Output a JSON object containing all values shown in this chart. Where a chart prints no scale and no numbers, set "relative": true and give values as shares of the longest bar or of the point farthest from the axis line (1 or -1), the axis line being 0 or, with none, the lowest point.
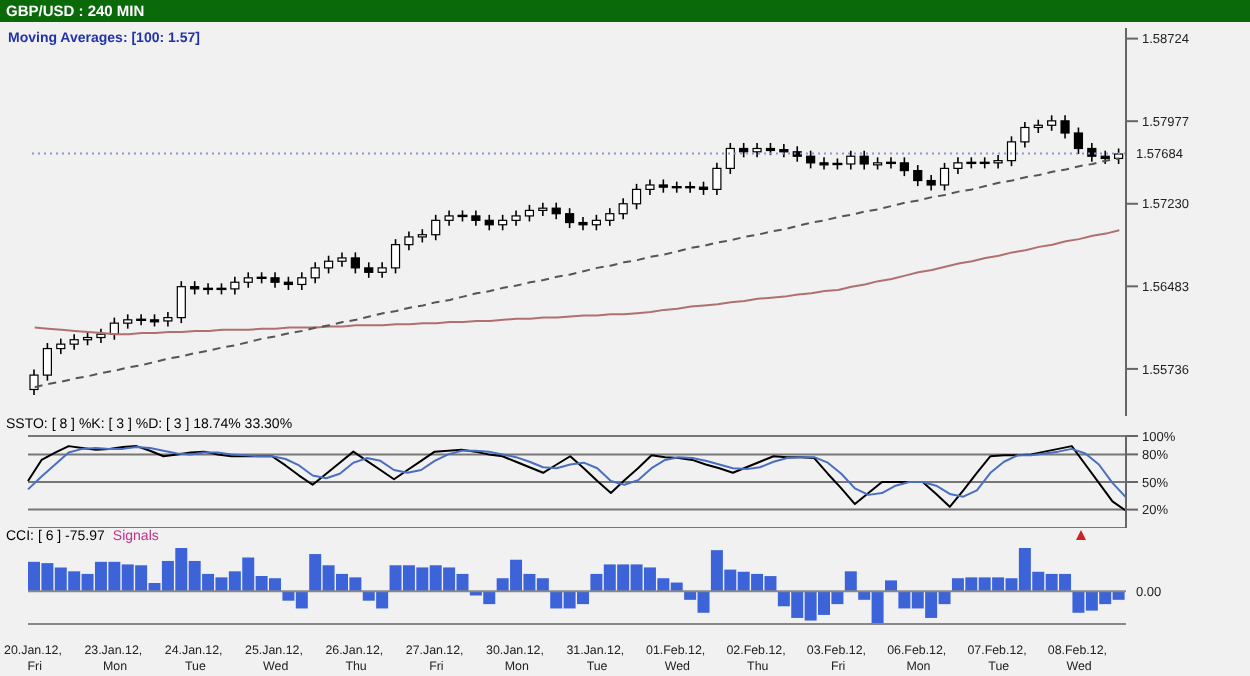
{
  "chart_data": [
    {
      "type": "candlestick",
      "title": "GBP/USD : 240 MIN",
      "annotations": [
        "Moving Averages: [100: 1.57]"
      ],
      "tick_labels": "y",
      "categories": [
        null,
        null,
        null,
        null,
        null,
        null,
        null,
        null,
        null,
        null,
        null,
        null,
        null,
        null,
        null,
        null,
        null,
        null,
        null,
        null,
        null,
        null,
        null,
        null,
        null,
        null,
        null,
        null,
        null,
        null,
        null,
        null,
        null,
        null,
        null,
        null,
        null,
        null,
        null,
        null,
        null,
        null,
        null,
        null,
        null,
        null,
        null,
        null,
        null,
        null,
        null,
        null,
        null,
        null,
        null,
        null,
        null,
        null,
        null,
        null,
        null,
        null,
        null,
        null,
        null,
        null,
        null,
        null,
        null,
        null,
        null,
        null,
        null,
        null,
        null,
        null,
        null,
        null,
        null,
        null,
        null,
        null
      ],
      "ohlc": [
        [
          1.5555,
          1.5573,
          1.555,
          1.5568
        ],
        [
          1.5568,
          1.5597,
          1.5563,
          1.5592
        ],
        [
          1.5592,
          1.5601,
          1.5587,
          1.5596
        ],
        [
          1.5596,
          1.5605,
          1.5591,
          1.56
        ],
        [
          1.56,
          1.5607,
          1.5595,
          1.5602
        ],
        [
          1.5602,
          1.561,
          1.5597,
          1.5605
        ],
        [
          1.5605,
          1.562,
          1.56,
          1.5615
        ],
        [
          1.5615,
          1.5623,
          1.561,
          1.5618
        ],
        [
          1.5618,
          1.5623,
          1.5613,
          1.5618
        ],
        [
          1.5618,
          1.5623,
          1.5612,
          1.5617
        ],
        [
          1.5617,
          1.5625,
          1.5612,
          1.562
        ],
        [
          1.562,
          1.5653,
          1.5615,
          1.5648
        ],
        [
          1.5648,
          1.5653,
          1.5641,
          1.5646
        ],
        [
          1.5646,
          1.5651,
          1.5641,
          1.5646
        ],
        [
          1.5646,
          1.5651,
          1.5641,
          1.5646
        ],
        [
          1.5646,
          1.5657,
          1.5641,
          1.5652
        ],
        [
          1.5652,
          1.5661,
          1.5647,
          1.5656
        ],
        [
          1.5656,
          1.5661,
          1.5651,
          1.5656
        ],
        [
          1.5656,
          1.5661,
          1.5647,
          1.5652
        ],
        [
          1.5652,
          1.5657,
          1.5645,
          1.565
        ],
        [
          1.565,
          1.5661,
          1.5645,
          1.5656
        ],
        [
          1.5656,
          1.567,
          1.5651,
          1.5665
        ],
        [
          1.5665,
          1.5676,
          1.566,
          1.5671
        ],
        [
          1.5671,
          1.5679,
          1.5666,
          1.5674
        ],
        [
          1.5674,
          1.5679,
          1.566,
          1.5665
        ],
        [
          1.5665,
          1.567,
          1.5656,
          1.5661
        ],
        [
          1.5661,
          1.567,
          1.5656,
          1.5665
        ],
        [
          1.5665,
          1.5691,
          1.566,
          1.5686
        ],
        [
          1.5686,
          1.5698,
          1.5681,
          1.5693
        ],
        [
          1.5693,
          1.57,
          1.5688,
          1.5695
        ],
        [
          1.5695,
          1.5713,
          1.569,
          1.5708
        ],
        [
          1.5708,
          1.5717,
          1.5703,
          1.5712
        ],
        [
          1.5712,
          1.5717,
          1.5707,
          1.5712
        ],
        [
          1.5712,
          1.5717,
          1.5703,
          1.5708
        ],
        [
          1.5708,
          1.5713,
          1.5699,
          1.5704
        ],
        [
          1.5704,
          1.5713,
          1.5699,
          1.5708
        ],
        [
          1.5708,
          1.5717,
          1.5703,
          1.5712
        ],
        [
          1.5712,
          1.5722,
          1.5707,
          1.5717
        ],
        [
          1.5717,
          1.5724,
          1.5712,
          1.5719
        ],
        [
          1.5719,
          1.5724,
          1.5709,
          1.5714
        ],
        [
          1.5714,
          1.5719,
          1.5701,
          1.5706
        ],
        [
          1.5706,
          1.5711,
          1.5699,
          1.5704
        ],
        [
          1.5704,
          1.5713,
          1.5699,
          1.5708
        ],
        [
          1.5708,
          1.5719,
          1.5703,
          1.5714
        ],
        [
          1.5714,
          1.5728,
          1.5709,
          1.5723
        ],
        [
          1.5723,
          1.5741,
          1.5718,
          1.5736
        ],
        [
          1.5736,
          1.5745,
          1.5731,
          1.574
        ],
        [
          1.574,
          1.5745,
          1.5733,
          1.5738
        ],
        [
          1.5738,
          1.5743,
          1.5733,
          1.5738
        ],
        [
          1.5738,
          1.5743,
          1.5733,
          1.5738
        ],
        [
          1.5738,
          1.5743,
          1.5731,
          1.5736
        ],
        [
          1.5736,
          1.576,
          1.5731,
          1.5755
        ],
        [
          1.5755,
          1.5778,
          1.575,
          1.5773
        ],
        [
          1.5773,
          1.5778,
          1.5765,
          1.577
        ],
        [
          1.577,
          1.5778,
          1.5765,
          1.5773
        ],
        [
          1.5773,
          1.5778,
          1.5767,
          1.5772
        ],
        [
          1.5772,
          1.5777,
          1.5765,
          1.577
        ],
        [
          1.577,
          1.5775,
          1.5761,
          1.5766
        ],
        [
          1.5766,
          1.5771,
          1.5755,
          1.576
        ],
        [
          1.576,
          1.5765,
          1.5754,
          1.5759
        ],
        [
          1.5759,
          1.5764,
          1.5754,
          1.5759
        ],
        [
          1.5759,
          1.5771,
          1.5754,
          1.5766
        ],
        [
          1.5766,
          1.5771,
          1.5754,
          1.5759
        ],
        [
          1.5759,
          1.5765,
          1.5754,
          1.576
        ],
        [
          1.576,
          1.5765,
          1.5755,
          1.576
        ],
        [
          1.576,
          1.5765,
          1.5748,
          1.5753
        ],
        [
          1.5753,
          1.5758,
          1.5739,
          1.5744
        ],
        [
          1.5744,
          1.5749,
          1.5735,
          1.574
        ],
        [
          1.574,
          1.576,
          1.5735,
          1.5755
        ],
        [
          1.5755,
          1.5765,
          1.575,
          1.576
        ],
        [
          1.576,
          1.5765,
          1.5755,
          1.576
        ],
        [
          1.576,
          1.5765,
          1.5755,
          1.576
        ],
        [
          1.576,
          1.5767,
          1.5755,
          1.5762
        ],
        [
          1.5762,
          1.5784,
          1.5757,
          1.5779
        ],
        [
          1.5779,
          1.5797,
          1.5774,
          1.5792
        ],
        [
          1.5792,
          1.5799,
          1.5787,
          1.5794
        ],
        [
          1.5794,
          1.5803,
          1.5789,
          1.5798
        ],
        [
          1.5798,
          1.5803,
          1.5782,
          1.5787
        ],
        [
          1.5787,
          1.5792,
          1.5768,
          1.5773
        ],
        [
          1.5773,
          1.5778,
          1.5761,
          1.5766
        ],
        [
          1.5766,
          1.5771,
          1.5759,
          1.5764
        ],
        [
          1.5764,
          1.5773,
          1.5759,
          1.5768
        ]
      ],
      "series": [
        {
          "type": "line",
          "color": "#b07070",
          "values": [
            1.5611,
            1.561,
            1.5609,
            1.5608,
            1.5607,
            1.5606,
            1.5605,
            1.5605,
            1.5606,
            1.5606,
            1.5607,
            1.5607,
            1.5608,
            1.5608,
            1.5609,
            1.5609,
            1.5609,
            1.561,
            1.561,
            1.5611,
            1.5611,
            1.5611,
            1.5612,
            1.5612,
            1.5613,
            1.5613,
            1.5613,
            1.5614,
            1.5614,
            1.5615,
            1.5615,
            1.5616,
            1.5616,
            1.5617,
            1.5617,
            1.5618,
            1.5619,
            1.5619,
            1.562,
            1.562,
            1.5621,
            1.5622,
            1.5622,
            1.5623,
            1.5623,
            1.5624,
            1.5625,
            1.5627,
            1.5628,
            1.563,
            1.5631,
            1.5632,
            1.5634,
            1.5635,
            1.5637,
            1.5638,
            1.5639,
            1.5641,
            1.5642,
            1.5644,
            1.5645,
            1.5648,
            1.565,
            1.5653,
            1.5655,
            1.5658,
            1.5661,
            1.5663,
            1.5666,
            1.5669,
            1.5671,
            1.5674,
            1.5676,
            1.5679,
            1.5681,
            1.5684,
            1.5686,
            1.5689,
            1.5691,
            1.5694,
            1.5696,
            1.5699
          ]
        },
        {
          "type": "line",
          "color": "#555555",
          "line_style": "dashed",
          "values": [
            1.5557,
            1.556,
            1.5562,
            1.5565,
            1.5567,
            1.557,
            1.5572,
            1.5575,
            1.5577,
            1.558,
            1.5583,
            1.5585,
            1.5588,
            1.559,
            1.5593,
            1.5595,
            1.5598,
            1.5601,
            1.5603,
            1.5606,
            1.5608,
            1.5611,
            1.5613,
            1.5616,
            1.5618,
            1.5621,
            1.5624,
            1.5626,
            1.5629,
            1.5631,
            1.5634,
            1.5636,
            1.5639,
            1.5642,
            1.5644,
            1.5647,
            1.5649,
            1.5652,
            1.5654,
            1.5657,
            1.5659,
            1.5662,
            1.5665,
            1.5667,
            1.567,
            1.5672,
            1.5675,
            1.5677,
            1.568,
            1.5683,
            1.5685,
            1.5688,
            1.569,
            1.5693,
            1.5695,
            1.5698,
            1.57,
            1.5703,
            1.5706,
            1.5708,
            1.5711,
            1.5713,
            1.5716,
            1.5718,
            1.5721,
            1.5724,
            1.5726,
            1.5729,
            1.5731,
            1.5734,
            1.5736,
            1.5739,
            1.5742,
            1.5744,
            1.5747,
            1.5749,
            1.5752,
            1.5754,
            1.5757,
            1.5759,
            1.5762,
            1.5764
          ]
        }
      ],
      "ylim": [
        1.5531,
        1.5882
      ],
      "yticks": [
        1.55736,
        1.56483,
        {
          "value": 1.5723,
          "label": "1.57230"
        },
        1.57977,
        1.58724
      ],
      "ref_lines": [
        {
          "axis": "y",
          "value": 1.57684,
          "label": "1.57684",
          "color": "#8899cc",
          "line_style": "dotted"
        }
      ]
    },
    {
      "type": "line",
      "title": "SSTO: [ 8 ] %K: [ 3 ] %D: [ 3 ] 18.74% 33.30%",
      "tick_labels": "y",
      "grid": "y",
      "categories": [
        null,
        null,
        null,
        null,
        null,
        null,
        null,
        null,
        null,
        null,
        null,
        null,
        null,
        null,
        null,
        null,
        null,
        null,
        null,
        null,
        null,
        null,
        null,
        null,
        null,
        null,
        null,
        null,
        null,
        null,
        null,
        null,
        null,
        null,
        null,
        null,
        null,
        null,
        null,
        null,
        null,
        null,
        null,
        null,
        null,
        null,
        null,
        null,
        null,
        null,
        null,
        null,
        null,
        null,
        null,
        null,
        null,
        null,
        null,
        null,
        null,
        null,
        null,
        null,
        null,
        null,
        null,
        null,
        null,
        null,
        null,
        null,
        null,
        null,
        null,
        null,
        null,
        null,
        null,
        null,
        null,
        null
      ],
      "series": [
        {
          "color": "#000000",
          "values": [
            51,
            74,
            82,
            89,
            87,
            85,
            86,
            88,
            89,
            84,
            78,
            80,
            82,
            83,
            80,
            78,
            78,
            78,
            78,
            68,
            57,
            47,
            59,
            71,
            83,
            73,
            63,
            53,
            63,
            73,
            83,
            84,
            85,
            83,
            80,
            78,
            72,
            66,
            60,
            69,
            78,
            65,
            51,
            38,
            52,
            65,
            79,
            77,
            76,
            74,
            69,
            65,
            60,
            66,
            72,
            78,
            77,
            77,
            76,
            59,
            43,
            26,
            38,
            50,
            50,
            50,
            50,
            37,
            23,
            41,
            60,
            78,
            79,
            79,
            80,
            83,
            86,
            89,
            69,
            49,
            29,
            18.74
          ]
        },
        {
          "color": "#4a6fc0",
          "values": [
            42,
            56,
            69,
            82,
            86,
            87,
            86,
            86,
            88,
            87,
            84,
            81,
            80,
            82,
            82,
            80,
            79,
            78,
            78,
            75,
            68,
            57,
            54,
            59,
            71,
            76,
            73,
            63,
            60,
            63,
            73,
            80,
            84,
            84,
            83,
            80,
            77,
            72,
            66,
            65,
            69,
            71,
            65,
            51,
            47,
            52,
            65,
            74,
            77,
            76,
            73,
            69,
            65,
            64,
            66,
            72,
            76,
            77,
            77,
            71,
            59,
            43,
            36,
            38,
            46,
            50,
            50,
            46,
            37,
            34,
            41,
            60,
            72,
            79,
            79,
            81,
            83,
            86,
            81,
            69,
            49,
            33.3
          ]
        }
      ],
      "ylim": [
        0,
        100
      ],
      "yticks": [
        {
          "value": 20,
          "label": "20%"
        },
        {
          "value": 50,
          "label": "50%"
        },
        {
          "value": 80,
          "label": "80%"
        },
        {
          "value": 100,
          "label": "100%"
        }
      ]
    },
    {
      "type": "bar",
      "title": "CCI: [ 6 ] -75.97",
      "annotations": [
        "Signals"
      ],
      "relative": true,
      "color": "#3d63d8",
      "categories": [
        "20.Jan.12, Fri",
        null,
        null,
        null,
        null,
        null,
        "23.Jan.12, Mon",
        null,
        null,
        null,
        null,
        null,
        "24.Jan.12, Tue",
        null,
        null,
        null,
        null,
        null,
        "25.Jan.12, Wed",
        null,
        null,
        null,
        null,
        null,
        "26.Jan.12, Thu",
        null,
        null,
        null,
        null,
        null,
        "27.Jan.12, Fri",
        null,
        null,
        null,
        null,
        null,
        "30.Jan.12, Mon",
        null,
        null,
        null,
        null,
        null,
        "31.Jan.12, Tue",
        null,
        null,
        null,
        null,
        null,
        "01.Feb.12, Wed",
        null,
        null,
        null,
        null,
        null,
        "02.Feb.12, Thu",
        null,
        null,
        null,
        null,
        null,
        "03.Feb.12, Fri",
        null,
        null,
        null,
        null,
        null,
        "06.Feb.12, Mon",
        null,
        null,
        null,
        null,
        null,
        "07.Feb.12, Tue",
        null,
        null,
        null,
        null,
        null,
        "08.Feb.12, Wed",
        null,
        null,
        null
      ],
      "values": [
        0.68,
        0.65,
        0.55,
        0.46,
        0.4,
        0.68,
        0.68,
        0.62,
        0.6,
        0.19,
        0.7,
        1,
        0.7,
        0.4,
        0.32,
        0.46,
        0.78,
        0.35,
        0.3,
        -0.22,
        -0.4,
        0.86,
        0.6,
        0.4,
        0.32,
        -0.22,
        -0.4,
        0.6,
        0.6,
        0.55,
        0.6,
        0.55,
        0.4,
        -0.1,
        -0.3,
        0.3,
        0.73,
        0.4,
        0.3,
        -0.4,
        -0.4,
        -0.3,
        0.4,
        0.62,
        0.62,
        0.62,
        0.55,
        0.3,
        0.2,
        -0.2,
        -0.5,
        0.95,
        0.5,
        0.45,
        0.4,
        0.35,
        -0.35,
        -0.62,
        -0.68,
        -0.55,
        -0.3,
        0.46,
        -0.2,
        -0.76,
        0.25,
        -0.4,
        -0.4,
        -0.62,
        -0.3,
        0.3,
        0.32,
        0.32,
        0.32,
        0.3,
        1,
        0.45,
        0.4,
        0.4,
        -0.5,
        -0.45,
        -0.3,
        -0.2
      ],
      "ref_lines": [
        {
          "axis": "y",
          "value": 0,
          "label": "0.00",
          "color": "#888888"
        }
      ]
    }
  ]
}
